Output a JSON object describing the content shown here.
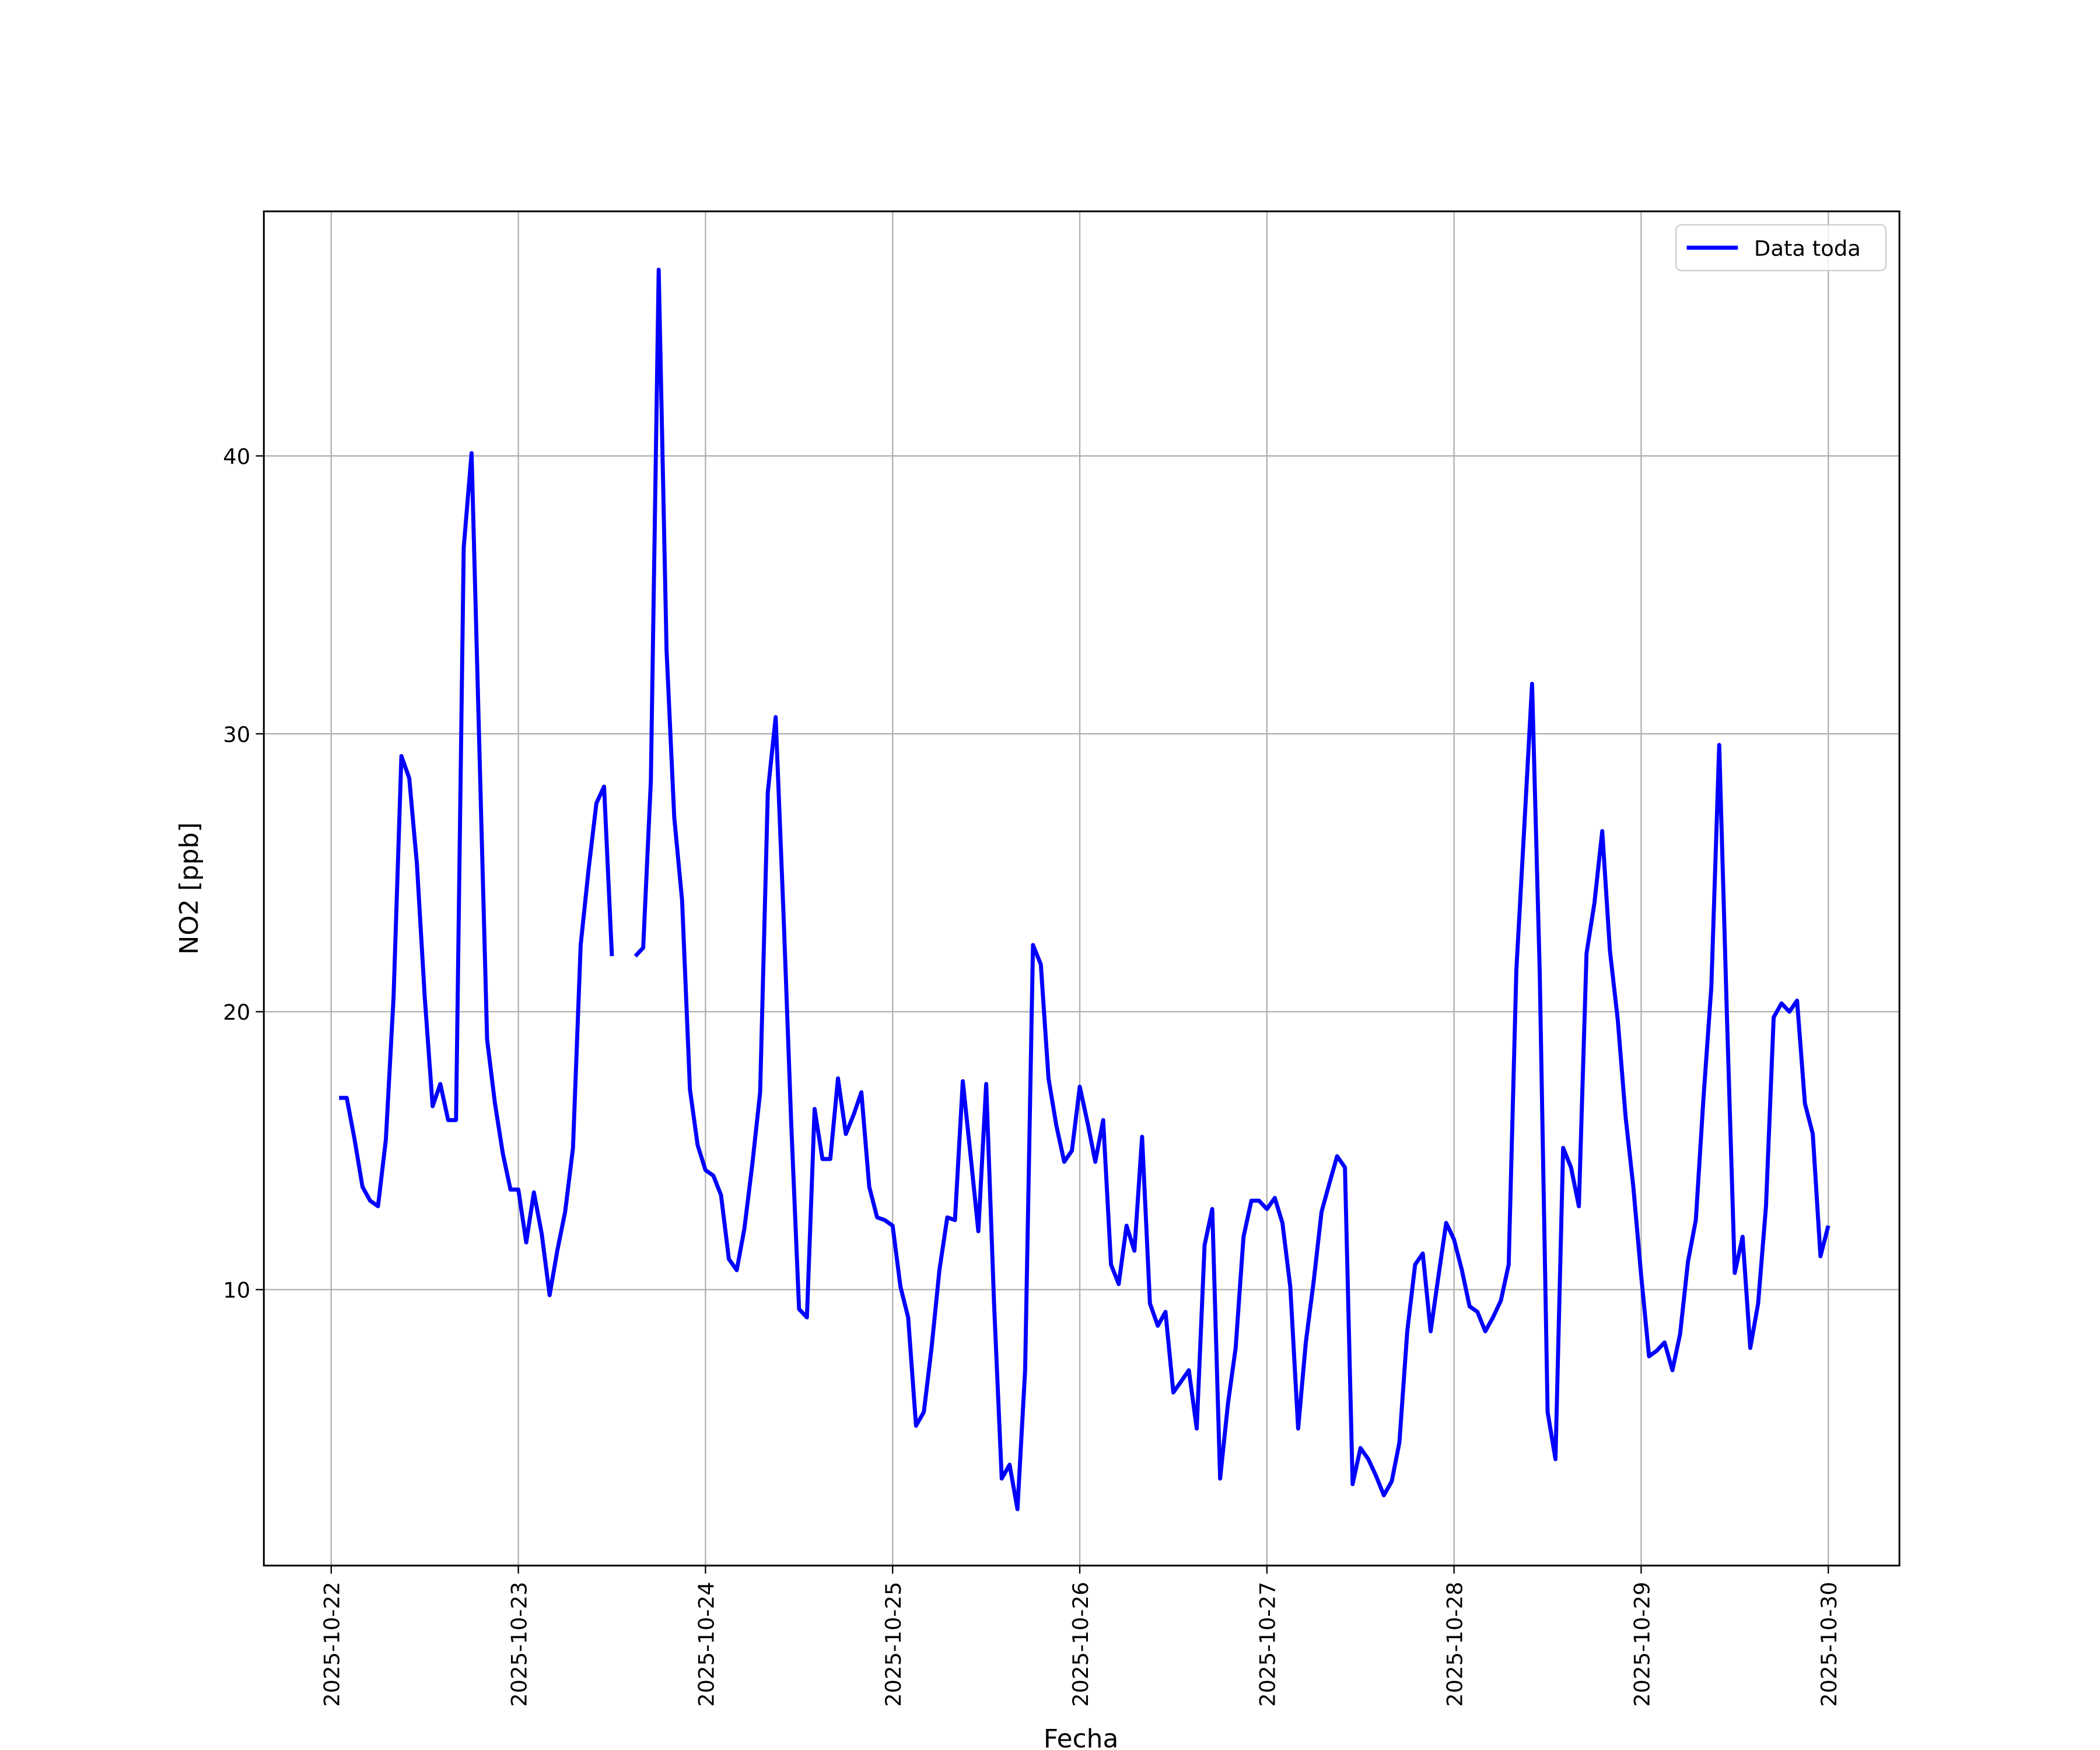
{
  "chart_data": {
    "type": "line",
    "xlabel": "Fecha",
    "ylabel": "NO2 [ppb]",
    "x": [
      22.042,
      22.083,
      22.125,
      22.167,
      22.208,
      22.25,
      22.292,
      22.333,
      22.375,
      22.417,
      22.458,
      22.5,
      22.542,
      22.583,
      22.625,
      22.667,
      22.708,
      22.75,
      22.792,
      22.833,
      22.875,
      22.917,
      22.958,
      23,
      23.042,
      23.083,
      23.125,
      23.167,
      23.208,
      23.25,
      23.292,
      23.333,
      23.375,
      23.417,
      23.458,
      23.5,
      23.542,
      23.583,
      23.625,
      23.667,
      23.708,
      23.75,
      23.792,
      23.833,
      23.875,
      23.917,
      23.958,
      24,
      24.042,
      24.083,
      24.125,
      24.167,
      24.208,
      24.25,
      24.292,
      24.333,
      24.375,
      24.417,
      24.458,
      24.5,
      24.542,
      24.583,
      24.625,
      24.667,
      24.708,
      24.75,
      24.792,
      24.833,
      24.875,
      24.917,
      24.958,
      25,
      25.042,
      25.083,
      25.125,
      25.167,
      25.208,
      25.25,
      25.292,
      25.333,
      25.375,
      25.417,
      25.458,
      25.5,
      25.542,
      25.583,
      25.625,
      25.667,
      25.708,
      25.75,
      25.792,
      25.833,
      25.875,
      25.917,
      25.958,
      26,
      26.042,
      26.083,
      26.125,
      26.167,
      26.208,
      26.25,
      26.292,
      26.333,
      26.375,
      26.417,
      26.458,
      26.5,
      26.542,
      26.583,
      26.625,
      26.667,
      26.708,
      26.75,
      26.792,
      26.833,
      26.875,
      26.917,
      26.958,
      27,
      27.042,
      27.083,
      27.125,
      27.167,
      27.208,
      27.25,
      27.292,
      27.333,
      27.375,
      27.417,
      27.458,
      27.5,
      27.542,
      27.583,
      27.625,
      27.667,
      27.708,
      27.75,
      27.792,
      27.833,
      27.875,
      27.917,
      27.958,
      28,
      28.042,
      28.083,
      28.125,
      28.167,
      28.208,
      28.25,
      28.292,
      28.333,
      28.375,
      28.417,
      28.458,
      28.5,
      28.542,
      28.583,
      28.625,
      28.667,
      28.708,
      28.75,
      28.792,
      28.833,
      28.875,
      28.917,
      28.958,
      29,
      29.042,
      29.083,
      29.125,
      29.167,
      29.208,
      29.25,
      29.292,
      29.333,
      29.375,
      29.417,
      29.458,
      29.5,
      29.542,
      29.583,
      29.625,
      29.667,
      29.708,
      29.75,
      29.792,
      29.833,
      29.875,
      29.917,
      29.958,
      30
    ],
    "series": [
      {
        "name": "Data toda",
        "color": "#0000ff",
        "values": [
          16.9,
          16.9,
          15.4,
          13.7,
          13.2,
          13.0,
          15.4,
          20.5,
          29.2,
          28.4,
          25.3,
          20.5,
          16.6,
          17.4,
          16.1,
          16.1,
          36.7,
          40.1,
          29.4,
          19.0,
          16.7,
          14.9,
          13.6,
          13.6,
          11.7,
          13.5,
          12.0,
          9.8,
          11.4,
          12.8,
          15.1,
          22.4,
          25.1,
          27.5,
          28.1,
          22.0,
          null,
          null,
          22.0,
          22.3,
          28.3,
          46.7,
          33.0,
          27.0,
          24.0,
          17.2,
          15.2,
          14.3,
          14.1,
          13.4,
          11.1,
          10.7,
          12.2,
          14.5,
          17.1,
          27.9,
          30.6,
          23.5,
          16.0,
          9.3,
          9.0,
          16.5,
          14.7,
          14.7,
          17.6,
          15.6,
          16.3,
          17.1,
          13.7,
          12.6,
          12.5,
          12.3,
          10.1,
          9.0,
          5.1,
          5.6,
          7.9,
          10.7,
          12.6,
          12.5,
          17.5,
          14.8,
          12.1,
          17.4,
          9.5,
          3.2,
          3.7,
          2.1,
          7.1,
          22.4,
          21.7,
          17.6,
          15.9,
          14.6,
          15.0,
          17.3,
          16.0,
          14.6,
          16.1,
          10.9,
          10.2,
          12.3,
          11.4,
          15.5,
          9.5,
          8.7,
          9.2,
          6.3,
          6.7,
          7.1,
          5.0,
          11.6,
          12.9,
          3.2,
          5.9,
          7.9,
          11.9,
          13.2,
          13.2,
          12.9,
          13.3,
          12.4,
          10.1,
          5.0,
          8.1,
          10.3,
          12.8,
          13.8,
          14.8,
          14.4,
          3.0,
          4.3,
          3.9,
          3.3,
          2.6,
          3.1,
          4.5,
          8.5,
          10.9,
          11.3,
          8.5,
          10.5,
          12.4,
          11.8,
          10.7,
          9.4,
          9.2,
          8.5,
          9.0,
          9.6,
          10.9,
          21.5,
          26.6,
          31.8,
          21.4,
          5.6,
          3.9,
          15.1,
          14.4,
          13.0,
          22.1,
          23.9,
          26.5,
          22.2,
          19.7,
          16.2,
          13.7,
          10.5,
          7.6,
          7.8,
          8.1,
          7.1,
          8.4,
          11.0,
          12.5,
          16.9,
          20.9,
          29.6,
          19.9,
          10.6,
          11.9,
          7.9,
          9.5,
          13.0,
          19.8,
          20.3,
          20.0,
          20.4,
          16.7,
          15.6,
          11.2,
          12.3
        ]
      }
    ],
    "xlim": [
      21.64,
      30.38
    ],
    "xticks": [
      {
        "value": 22,
        "label": "2025-10-22"
      },
      {
        "value": 23,
        "label": "2025-10-23"
      },
      {
        "value": 24,
        "label": "2025-10-24"
      },
      {
        "value": 25,
        "label": "2025-10-25"
      },
      {
        "value": 26,
        "label": "2025-10-26"
      },
      {
        "value": 27,
        "label": "2025-10-27"
      },
      {
        "value": 28,
        "label": "2025-10-28"
      },
      {
        "value": 29,
        "label": "2025-10-29"
      },
      {
        "value": 30,
        "label": "2025-10-30"
      }
    ],
    "ylim": [
      0.07,
      48.8
    ],
    "yticks": [
      10,
      20,
      30,
      40
    ],
    "grid": true,
    "legend": "upper right"
  }
}
